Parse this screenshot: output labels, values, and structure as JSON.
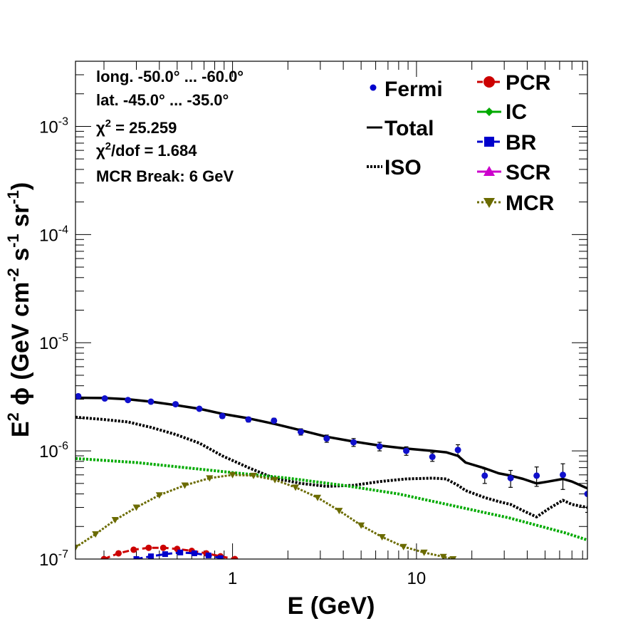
{
  "chart_data": {
    "type": "line",
    "x_scale": "log",
    "y_scale": "log",
    "xlim": [
      0.14,
      85
    ],
    "ylim": [
      1e-07,
      0.004
    ],
    "xlabel_main": "E (GeV)",
    "ylabel": {
      "e": "E",
      "e_sup": "2",
      "phi": "ϕ",
      "unit_a": "(GeV cm",
      "sup_a": "-2",
      "unit_b": " s",
      "sup_b": "-1",
      "unit_c": " sr",
      "sup_c": "-1",
      "unit_d": ")"
    },
    "x_ticks": [
      {
        "value": 1,
        "label": "1"
      },
      {
        "value": 10,
        "label": "10"
      }
    ],
    "y_ticks": [
      {
        "value": 1e-07,
        "base": "10",
        "exp": "-7"
      },
      {
        "value": 1e-06,
        "base": "10",
        "exp": "-6"
      },
      {
        "value": 1e-05,
        "base": "10",
        "exp": "-5"
      },
      {
        "value": 0.0001,
        "base": "10",
        "exp": "-4"
      },
      {
        "value": 0.001,
        "base": "10",
        "exp": "-3"
      }
    ],
    "annotations": {
      "longitude": "long. -50.0° ... -60.0°",
      "latitude": "lat. -45.0° ... -35.0°",
      "chi2_sym": "χ",
      "chi2_sup": "2",
      "chi2_val": " = 25.259",
      "chi2dof_sym": "χ",
      "chi2dof_sup": "2",
      "chi2dof_val": "/dof = 1.684",
      "break": "MCR Break:  6 GeV"
    },
    "legend_left": [
      {
        "name": "Fermi",
        "color": "#0000cc",
        "marker": "dot"
      },
      {
        "name": "Total",
        "color": "#000000",
        "marker": "solid"
      },
      {
        "name": "ISO",
        "color": "#000000",
        "marker": "dotted"
      }
    ],
    "legend_right": [
      {
        "name": "PCR",
        "color": "#cc0000",
        "marker": "circle"
      },
      {
        "name": "IC",
        "color": "#00aa00",
        "marker": "diamond"
      },
      {
        "name": "BR",
        "color": "#0000cc",
        "marker": "square"
      },
      {
        "name": "SCR",
        "color": "#cc00cc",
        "marker": "triangle-up"
      },
      {
        "name": "MCR",
        "color": "#6b6b00",
        "marker": "triangle-down"
      }
    ],
    "fermi_points": {
      "name": "Fermi",
      "color": "#1010cc",
      "x": [
        0.145,
        0.202,
        0.27,
        0.36,
        0.49,
        0.66,
        0.88,
        1.22,
        1.68,
        2.35,
        3.25,
        4.55,
        6.3,
        8.8,
        12.2,
        16.8,
        23.5,
        32.5,
        45,
        62.5,
        85
      ],
      "y": [
        3.2e-06,
        3.05e-06,
        2.95e-06,
        2.85e-06,
        2.7e-06,
        2.45e-06,
        2.1e-06,
        1.95e-06,
        1.9e-06,
        1.5e-06,
        1.3e-06,
        1.2e-06,
        1.1e-06,
        1e-06,
        8.8e-07,
        1.02e-06,
        5.9e-07,
        5.6e-07,
        5.9e-07,
        6e-07,
        4e-07
      ],
      "err_lo": [
        1e-07,
        1e-07,
        1e-07,
        1e-07,
        1e-07,
        1e-07,
        1e-07,
        1e-07,
        1e-07,
        1e-07,
        1e-07,
        1e-07,
        1e-07,
        9e-08,
        8e-08,
        1.2e-07,
        9e-08,
        1e-07,
        1.2e-07,
        1.6e-07,
        1.3e-07
      ],
      "err_hi": [
        1e-07,
        1e-07,
        1e-07,
        1e-07,
        1e-07,
        1e-07,
        1e-07,
        1e-07,
        1e-07,
        1e-07,
        1e-07,
        1e-07,
        1e-07,
        9e-08,
        8e-08,
        1.2e-07,
        9e-08,
        1e-07,
        1.2e-07,
        1.6e-07,
        1.3e-07
      ]
    },
    "series": [
      {
        "name": "Total",
        "color": "#000000",
        "style": "solid",
        "width": 3.5,
        "x": [
          0.14,
          0.2,
          0.27,
          0.36,
          0.49,
          0.66,
          0.88,
          1.22,
          1.68,
          2.35,
          3.25,
          4.55,
          6.3,
          8.8,
          12.2,
          14.5,
          16.8,
          18.5,
          23.5,
          28,
          32.5,
          38,
          45,
          52,
          62.5,
          70,
          85
        ],
        "y": [
          3.1e-06,
          3.08e-06,
          3e-06,
          2.85e-06,
          2.65e-06,
          2.45e-06,
          2.2e-06,
          2e-06,
          1.78e-06,
          1.55e-06,
          1.35e-06,
          1.22e-06,
          1.12e-06,
          1.05e-06,
          1e-06,
          9.7e-07,
          9e-07,
          7.8e-07,
          6.9e-07,
          6.2e-07,
          5.9e-07,
          5.5e-07,
          5e-07,
          5.2e-07,
          5.5e-07,
          5.2e-07,
          4.5e-07
        ]
      },
      {
        "name": "ISO",
        "color": "#000000",
        "style": "dotted",
        "width": 4,
        "x": [
          0.14,
          0.2,
          0.27,
          0.36,
          0.49,
          0.66,
          0.88,
          1.22,
          1.68,
          2.35,
          3.25,
          4.55,
          6.3,
          8.8,
          12.2,
          14.5,
          16.8,
          18.5,
          23.5,
          28,
          32.5,
          38,
          45,
          52,
          62.5,
          70,
          85
        ],
        "y": [
          2.05e-06,
          1.95e-06,
          1.85e-06,
          1.65e-06,
          1.42e-06,
          1.18e-06,
          9e-07,
          7e-07,
          5.6e-07,
          5e-07,
          4.7e-07,
          4.8e-07,
          5.2e-07,
          5.5e-07,
          5.6e-07,
          5.5e-07,
          4.8e-07,
          4.3e-07,
          3.7e-07,
          3.4e-07,
          3.2e-07,
          2.8e-07,
          2.45e-07,
          2.9e-07,
          3.5e-07,
          3.2e-07,
          3e-07
        ]
      },
      {
        "name": "IC",
        "color": "#00aa00",
        "style": "dotted",
        "width": 4,
        "x": [
          0.14,
          0.3,
          0.6,
          1,
          2,
          4,
          8,
          16,
          32,
          64,
          85
        ],
        "y": [
          8.5e-07,
          7.8e-07,
          6.9e-07,
          6.3e-07,
          5.6e-07,
          4.8e-07,
          4e-07,
          3.1e-07,
          2.4e-07,
          1.75e-07,
          1.5e-07
        ]
      },
      {
        "name": "MCR",
        "color": "#6b6b00",
        "style": "dotted",
        "width": 3,
        "marker": "triangle-down",
        "x": [
          0.14,
          0.18,
          0.23,
          0.3,
          0.4,
          0.55,
          0.75,
          1.0,
          1.3,
          1.7,
          2.2,
          2.9,
          3.8,
          5.0,
          6.5,
          8.5,
          11,
          14,
          15.8
        ],
        "y": [
          1.28e-07,
          1.7e-07,
          2.3e-07,
          3e-07,
          3.9e-07,
          4.8e-07,
          5.6e-07,
          6e-07,
          5.9e-07,
          5.4e-07,
          4.6e-07,
          3.7e-07,
          2.8e-07,
          2.05e-07,
          1.6e-07,
          1.3e-07,
          1.15e-07,
          1.05e-07,
          1e-07
        ]
      },
      {
        "name": "PCR",
        "color": "#cc0000",
        "style": "dashed",
        "width": 3,
        "marker": "circle",
        "x": [
          0.2,
          0.24,
          0.29,
          0.35,
          0.42,
          0.5,
          0.6,
          0.72,
          0.86,
          1.03
        ],
        "y": [
          1e-07,
          1.13e-07,
          1.22e-07,
          1.27e-07,
          1.27e-07,
          1.24e-07,
          1.19e-07,
          1.13e-07,
          1.06e-07,
          1e-07
        ]
      },
      {
        "name": "BR",
        "color": "#0000cc",
        "style": "dashed",
        "width": 3,
        "marker": "square",
        "x": [
          0.3,
          0.36,
          0.43,
          0.52,
          0.62,
          0.74,
          0.86
        ],
        "y": [
          1e-07,
          1.06e-07,
          1.11e-07,
          1.15e-07,
          1.13e-07,
          1.08e-07,
          1.02e-07
        ]
      }
    ]
  }
}
